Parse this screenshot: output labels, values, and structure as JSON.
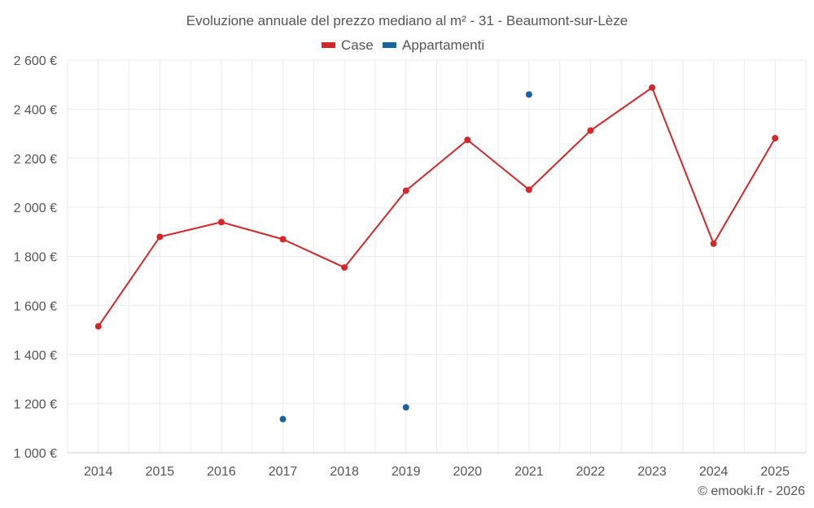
{
  "chart_data": {
    "type": "line",
    "title": "Evoluzione annuale del prezzo mediano al m² - 31 - Beaumont-sur-Lèze",
    "xlabel": "",
    "ylabel": "",
    "categories": [
      "2014",
      "2015",
      "2016",
      "2017",
      "2018",
      "2019",
      "2020",
      "2021",
      "2022",
      "2023",
      "2024",
      "2025"
    ],
    "ylim": [
      1000,
      2600
    ],
    "yticks": [
      1000,
      1200,
      1400,
      1600,
      1800,
      2000,
      2200,
      2400,
      2600
    ],
    "ytick_labels": [
      "1 000 €",
      "1 200 €",
      "1 400 €",
      "1 600 €",
      "1 800 €",
      "2 000 €",
      "2 200 €",
      "2 400 €",
      "2 600 €"
    ],
    "grid": true,
    "legend_position": "top-center",
    "series": [
      {
        "name": "Case",
        "color": "#d62728",
        "values": [
          1515,
          1880,
          1940,
          1870,
          1755,
          2068,
          2275,
          2072,
          2313,
          2488,
          1852,
          2282
        ]
      },
      {
        "name": "Appartamenti",
        "color": "#1a64a0",
        "values": [
          null,
          null,
          null,
          1137,
          null,
          1185,
          null,
          2460,
          null,
          null,
          null,
          null
        ]
      }
    ],
    "credit": "© emooki.fr - 2026"
  }
}
